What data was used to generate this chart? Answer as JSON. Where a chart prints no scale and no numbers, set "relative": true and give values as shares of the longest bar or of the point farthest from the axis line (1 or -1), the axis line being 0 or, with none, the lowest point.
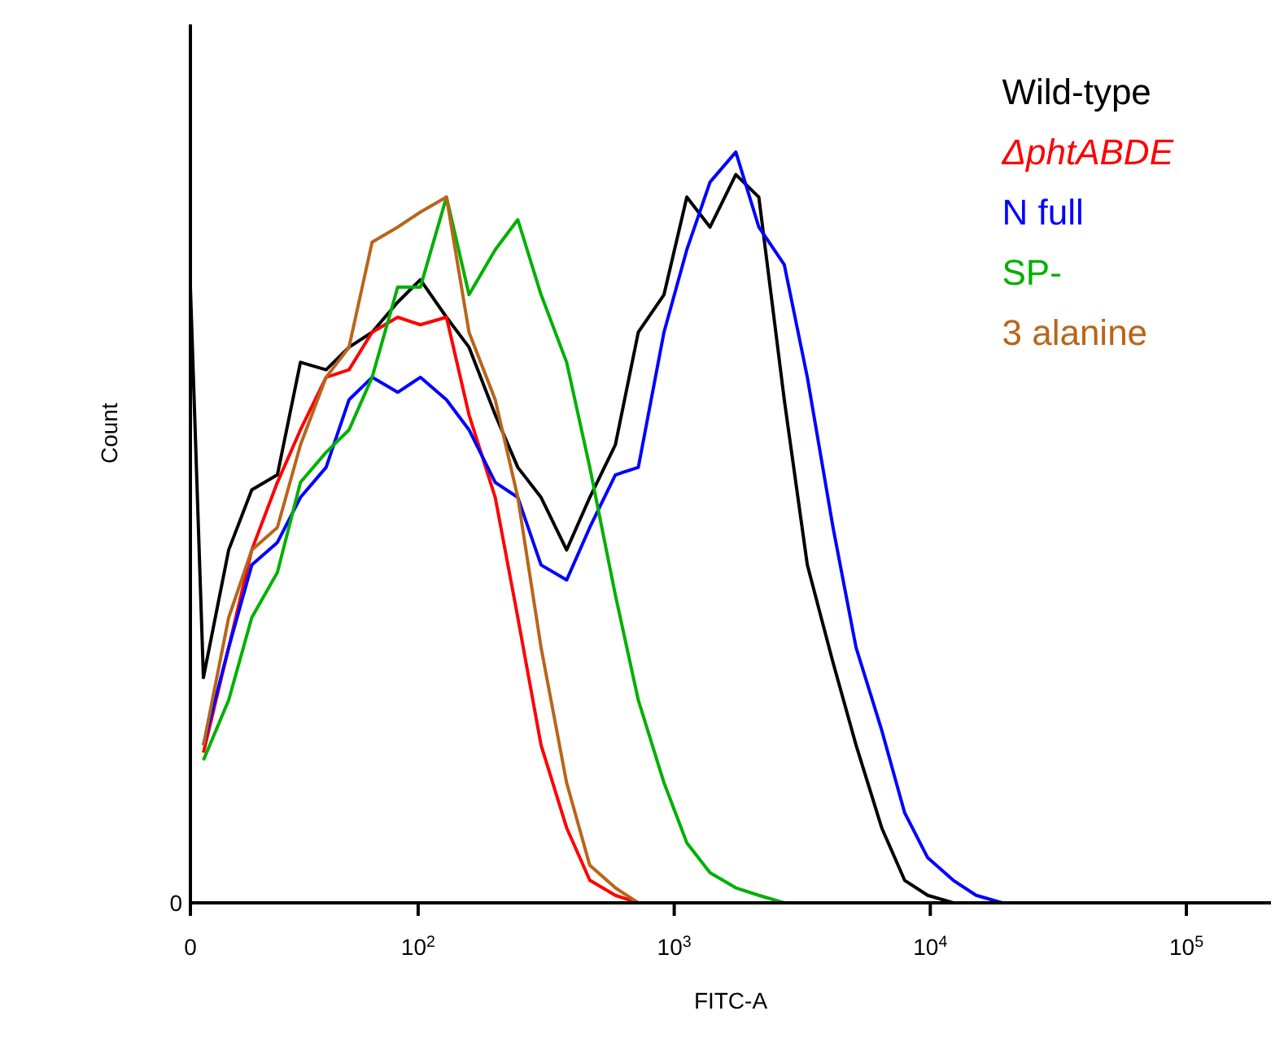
{
  "chart_data": {
    "type": "line",
    "relative": true,
    "xlabel": "FITC-A",
    "ylabel": "Count",
    "annotations": [
      "0"
    ],
    "log": "x",
    "x": [
      12.9,
      14.5,
      18.2,
      22.4,
      28.2,
      34.7,
      43.7,
      53.7,
      66.1,
      83.2,
      102,
      129,
      158,
      200,
      245,
      302,
      380,
      468,
      589,
      724,
      912,
      1120,
      1380,
      1740,
      2140,
      2690,
      3310,
      4170,
      5130,
      6460,
      7940,
      9770,
      12300,
      15100,
      19100
    ],
    "xlim": [
      0,
      214000
    ],
    "xticks": [
      0,
      {
        "value": 100,
        "label": "10$^{2}$"
      },
      {
        "value": 1000,
        "label": "10$^{3}$"
      },
      {
        "value": 10000,
        "label": "10$^{4}$"
      },
      {
        "value": 100000,
        "label": "10$^{5}$"
      }
    ],
    "marker": "none",
    "line_style": "solid",
    "series": [
      {
        "name": "Wild-type",
        "color": "#000000",
        "values": [
          0.82,
          0.3,
          0.47,
          0.55,
          0.57,
          0.72,
          0.71,
          0.74,
          0.76,
          0.8,
          0.83,
          0.78,
          0.74,
          0.65,
          0.58,
          0.54,
          0.47,
          0.54,
          0.61,
          0.76,
          0.81,
          0.94,
          0.9,
          0.97,
          0.94,
          0.67,
          0.45,
          0.32,
          0.21,
          0.1,
          0.03,
          0.01,
          0,
          null,
          null
        ]
      },
      {
        "name": "ΔphtABDE",
        "color": "#ff0000",
        "values": [
          null,
          0.2,
          0.34,
          0.47,
          0.56,
          0.63,
          0.7,
          0.71,
          0.76,
          0.78,
          0.77,
          0.78,
          0.65,
          0.54,
          0.38,
          0.21,
          0.1,
          0.03,
          0.01,
          0,
          null,
          null,
          null,
          null,
          null,
          null,
          null,
          null,
          null,
          null,
          null,
          null,
          null,
          null,
          null
        ]
      },
      {
        "name": "N full",
        "color": "#0000ff",
        "values": [
          null,
          0.21,
          0.34,
          0.45,
          0.48,
          0.54,
          0.58,
          0.67,
          0.7,
          0.68,
          0.7,
          0.67,
          0.63,
          0.56,
          0.54,
          0.45,
          0.43,
          0.5,
          0.57,
          0.58,
          0.76,
          0.87,
          0.96,
          1.0,
          0.9,
          0.85,
          0.7,
          0.5,
          0.34,
          0.23,
          0.12,
          0.06,
          0.03,
          0.01,
          0
        ]
      },
      {
        "name": "SP-",
        "color": "#00b000",
        "values": [
          null,
          0.19,
          0.27,
          0.38,
          0.44,
          0.56,
          0.6,
          0.63,
          0.7,
          0.82,
          0.82,
          0.94,
          0.81,
          0.87,
          0.91,
          0.81,
          0.72,
          0.58,
          0.41,
          0.27,
          0.16,
          0.08,
          0.04,
          0.02,
          0.01,
          0,
          null,
          null,
          null,
          null,
          null,
          null,
          null,
          null,
          null
        ]
      },
      {
        "name": "3 alanine",
        "color": "#b8651b",
        "values": [
          null,
          0.21,
          0.38,
          0.47,
          0.5,
          0.61,
          0.7,
          0.74,
          0.88,
          0.9,
          0.92,
          0.94,
          0.76,
          0.67,
          0.54,
          0.34,
          0.16,
          0.05,
          0.02,
          0,
          null,
          null,
          null,
          null,
          null,
          null,
          null,
          null,
          null,
          null,
          null,
          null,
          null,
          null,
          null
        ]
      }
    ]
  }
}
